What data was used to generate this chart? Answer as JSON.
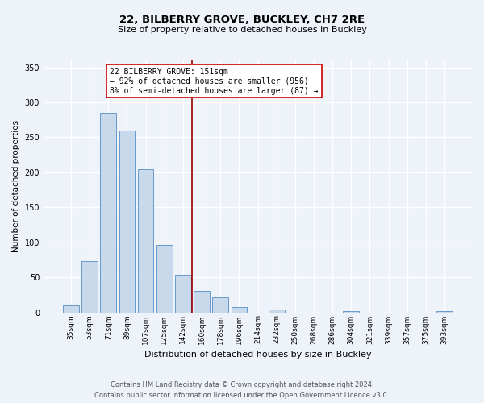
{
  "title": "22, BILBERRY GROVE, BUCKLEY, CH7 2RE",
  "subtitle": "Size of property relative to detached houses in Buckley",
  "xlabel": "Distribution of detached houses by size in Buckley",
  "ylabel": "Number of detached properties",
  "bar_labels": [
    "35sqm",
    "53sqm",
    "71sqm",
    "89sqm",
    "107sqm",
    "125sqm",
    "142sqm",
    "160sqm",
    "178sqm",
    "196sqm",
    "214sqm",
    "232sqm",
    "250sqm",
    "268sqm",
    "286sqm",
    "304sqm",
    "321sqm",
    "339sqm",
    "357sqm",
    "375sqm",
    "393sqm"
  ],
  "bar_values": [
    10,
    73,
    285,
    260,
    204,
    96,
    54,
    30,
    21,
    7,
    0,
    4,
    0,
    0,
    0,
    2,
    0,
    0,
    0,
    0,
    2
  ],
  "bar_color": "#c9d9ec",
  "bar_edge_color": "#6699cc",
  "vline_x_idx": 7,
  "vline_color": "#990000",
  "annotation_line1": "22 BILBERRY GROVE: 151sqm",
  "annotation_line2": "← 92% of detached houses are smaller (956)",
  "annotation_line3": "8% of semi-detached houses are larger (87) →",
  "annotation_box_color": "white",
  "annotation_box_edge": "#cc0000",
  "ylim": [
    0,
    360
  ],
  "yticks": [
    0,
    50,
    100,
    150,
    200,
    250,
    300,
    350
  ],
  "footnote1": "Contains HM Land Registry data © Crown copyright and database right 2024.",
  "footnote2": "Contains public sector information licensed under the Open Government Licence v3.0.",
  "bg_color": "#eef2f9",
  "grid_color": "white",
  "title_fontsize": 9.5,
  "subtitle_fontsize": 8,
  "ylabel_fontsize": 7.5,
  "xlabel_fontsize": 8,
  "tick_fontsize": 6.5,
  "annot_fontsize": 7
}
